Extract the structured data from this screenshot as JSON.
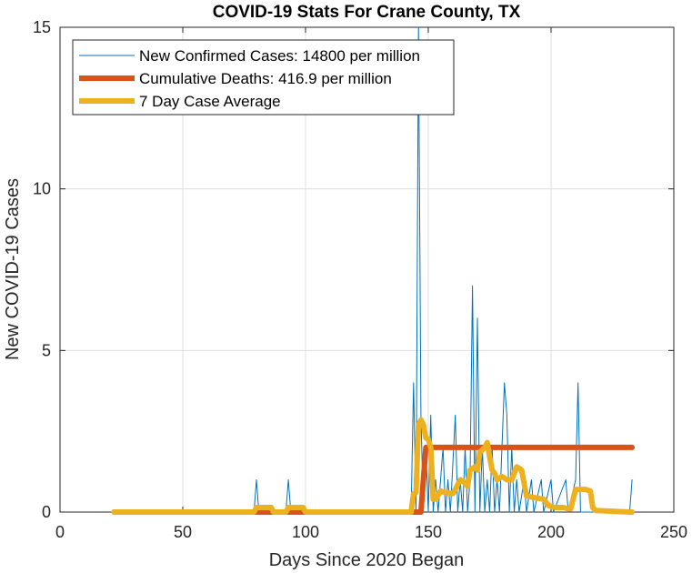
{
  "chart_data": {
    "type": "line",
    "title": "COVID-19 Stats For Crane County, TX",
    "xlabel": "Days Since 2020 Began",
    "ylabel": "New COVID-19 Cases",
    "xlim": [
      0,
      250
    ],
    "ylim": [
      0,
      15
    ],
    "xticks": [
      0,
      50,
      100,
      150,
      200,
      250
    ],
    "yticks": [
      0,
      5,
      10,
      15
    ],
    "grid": true,
    "legend_position": "top-left",
    "series": [
      {
        "name": "New Confirmed Cases: 14800 per million",
        "color": "#0072BD",
        "points": [
          [
            22,
            0
          ],
          [
            79,
            0
          ],
          [
            80,
            1
          ],
          [
            81,
            0
          ],
          [
            92,
            0
          ],
          [
            93,
            1
          ],
          [
            94,
            0
          ],
          [
            143,
            0
          ],
          [
            144,
            4
          ],
          [
            145,
            0
          ],
          [
            146,
            15
          ],
          [
            147,
            3
          ],
          [
            148,
            0
          ],
          [
            149,
            2
          ],
          [
            150,
            0
          ],
          [
            151,
            3
          ],
          [
            152,
            0
          ],
          [
            153,
            1
          ],
          [
            154,
            0
          ],
          [
            156,
            2
          ],
          [
            157,
            0
          ],
          [
            158,
            1
          ],
          [
            159,
            0
          ],
          [
            161,
            3
          ],
          [
            162,
            0
          ],
          [
            163,
            1
          ],
          [
            164,
            0
          ],
          [
            165,
            2
          ],
          [
            166,
            0
          ],
          [
            167,
            1
          ],
          [
            168,
            7
          ],
          [
            169,
            0
          ],
          [
            170,
            6
          ],
          [
            171,
            0
          ],
          [
            172,
            2
          ],
          [
            173,
            0
          ],
          [
            174,
            1
          ],
          [
            175,
            0
          ],
          [
            176,
            2
          ],
          [
            177,
            0
          ],
          [
            178,
            1
          ],
          [
            179,
            0
          ],
          [
            181,
            4
          ],
          [
            182,
            3
          ],
          [
            183,
            0
          ],
          [
            184,
            2
          ],
          [
            185,
            0
          ],
          [
            186,
            1
          ],
          [
            187,
            0
          ],
          [
            189,
            1
          ],
          [
            190,
            0
          ],
          [
            192,
            1
          ],
          [
            193,
            0
          ],
          [
            196,
            1
          ],
          [
            197,
            0
          ],
          [
            200,
            1
          ],
          [
            201,
            0
          ],
          [
            206,
            1
          ],
          [
            207,
            0
          ],
          [
            210,
            1
          ],
          [
            211,
            4
          ],
          [
            212,
            0
          ],
          [
            232,
            0
          ],
          [
            233,
            1
          ]
        ]
      },
      {
        "name": "Cumulative Deaths: 416.9 per million",
        "color": "#D95319",
        "points": [
          [
            22,
            0
          ],
          [
            144,
            0
          ],
          [
            147,
            0
          ],
          [
            149,
            2
          ],
          [
            233,
            2
          ]
        ]
      },
      {
        "name": "7 Day Case Average",
        "color": "#EDB120",
        "points": [
          [
            22,
            0
          ],
          [
            79,
            0
          ],
          [
            80,
            0.14
          ],
          [
            86,
            0.14
          ],
          [
            87,
            0
          ],
          [
            92,
            0
          ],
          [
            93,
            0.14
          ],
          [
            99,
            0.14
          ],
          [
            100,
            0
          ],
          [
            141,
            0
          ],
          [
            143,
            0
          ],
          [
            144,
            0.57
          ],
          [
            145,
            0.6
          ],
          [
            146,
            2.7
          ],
          [
            147,
            2.85
          ],
          [
            148,
            2.7
          ],
          [
            149,
            2.3
          ],
          [
            150,
            2.25
          ],
          [
            151,
            2.0
          ],
          [
            152,
            0.4
          ],
          [
            153,
            0.4
          ],
          [
            155,
            0.65
          ],
          [
            157,
            0.6
          ],
          [
            158,
            0.6
          ],
          [
            160,
            0.57
          ],
          [
            161,
            0.7
          ],
          [
            163,
            1
          ],
          [
            165,
            0.9
          ],
          [
            166,
            0.8
          ],
          [
            167,
            1.3
          ],
          [
            169,
            1.4
          ],
          [
            170,
            1.3
          ],
          [
            171,
            1.85
          ],
          [
            173,
            2.0
          ],
          [
            174,
            2.15
          ],
          [
            175,
            1.7
          ],
          [
            176,
            1.3
          ],
          [
            177,
            1.2
          ],
          [
            178,
            1.0
          ],
          [
            180,
            1.1
          ],
          [
            182,
            1.0
          ],
          [
            184,
            1.0
          ],
          [
            186,
            1.4
          ],
          [
            188,
            1.3
          ],
          [
            189,
            0.9
          ],
          [
            190,
            0.5
          ],
          [
            193,
            0.45
          ],
          [
            197,
            0.4
          ],
          [
            199,
            0.2
          ],
          [
            201,
            0.15
          ],
          [
            202,
            0.14
          ],
          [
            205,
            0.14
          ],
          [
            207,
            0.1
          ],
          [
            208,
            0.1
          ],
          [
            209,
            0.4
          ],
          [
            210,
            0.7
          ],
          [
            214,
            0.7
          ],
          [
            216,
            0.65
          ],
          [
            217,
            0.14
          ],
          [
            218,
            0.05
          ],
          [
            232,
            0
          ],
          [
            233,
            0
          ]
        ]
      }
    ]
  }
}
